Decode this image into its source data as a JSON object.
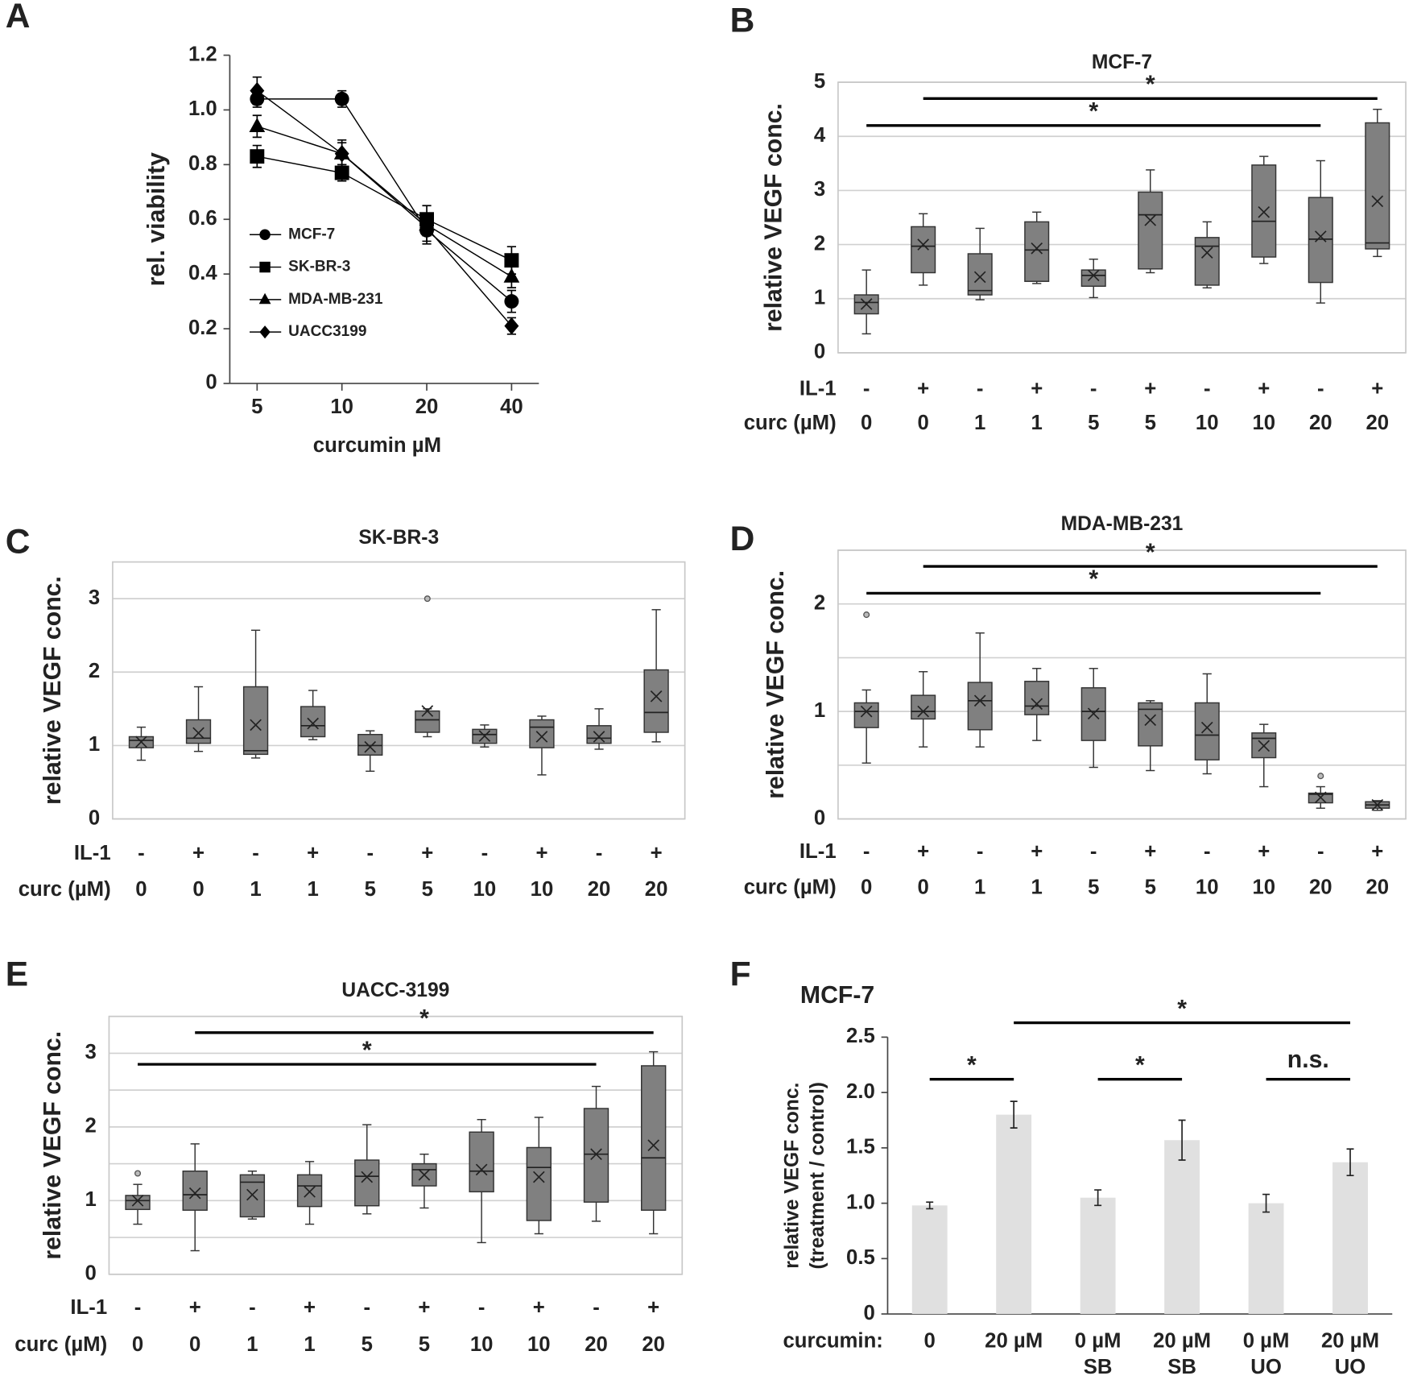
{
  "chart_data": [
    {
      "type": "line",
      "panel": "A",
      "ylabel": "rel. viability",
      "xlabel": "curcumin µM",
      "xscale": "log",
      "x": [
        5,
        10,
        20,
        40
      ],
      "xlim": [
        4,
        50
      ],
      "xticks": [
        5,
        10,
        20,
        40
      ],
      "ylim": [
        0,
        1.2
      ],
      "yticks": [
        0,
        0.2,
        0.4,
        0.6,
        0.8,
        {
          "value": 1,
          "label": "1.0"
        },
        1.2
      ],
      "legend": "left",
      "series": [
        {
          "name": "MCF-7",
          "marker": "circle",
          "color": "#000000",
          "values": [
            1.04,
            1.04,
            0.56,
            0.3
          ],
          "errors": [
            0.03,
            0.03,
            0.05,
            0.04
          ]
        },
        {
          "name": "SK-BR-3",
          "marker": "square",
          "color": "#000000",
          "values": [
            0.83,
            0.77,
            0.6,
            0.45
          ],
          "errors": [
            0.04,
            0.03,
            0.05,
            0.05
          ]
        },
        {
          "name": "MDA-MB-231",
          "marker": "triangle",
          "color": "#000000",
          "values": [
            0.94,
            0.84,
            0.58,
            0.39
          ],
          "errors": [
            0.04,
            0.04,
            0.04,
            0.04
          ]
        },
        {
          "name": "UACC3199",
          "marker": "diamond",
          "color": "#000000",
          "values": [
            1.07,
            0.84,
            0.57,
            0.21
          ],
          "errors": [
            0.05,
            0.05,
            0.05,
            0.03
          ]
        }
      ]
    },
    {
      "type": "box",
      "panel": "B",
      "title": "MCF-7",
      "ylabel": "relative VEGF conc.",
      "color": "#808080",
      "ylim": [
        0,
        5
      ],
      "yticks": [
        0,
        1,
        2,
        3,
        4,
        5
      ],
      "grid": true,
      "row_labels": [
        "IL-1",
        "curc (µM)"
      ],
      "il1": [
        "-",
        "+",
        "-",
        "+",
        "-",
        "+",
        "-",
        "+",
        "-",
        "+"
      ],
      "curc": [
        "0",
        "0",
        "1",
        "1",
        "5",
        "5",
        "10",
        "10",
        "20",
        "20"
      ],
      "boxes": [
        {
          "min": 0.35,
          "q1": 0.72,
          "median": 0.93,
          "q3": 1.07,
          "max": 1.53,
          "mean": 0.9
        },
        {
          "min": 1.25,
          "q1": 1.48,
          "median": 1.97,
          "q3": 2.33,
          "max": 2.57,
          "mean": 2.0
        },
        {
          "min": 0.98,
          "q1": 1.07,
          "median": 1.15,
          "q3": 1.83,
          "max": 2.3,
          "mean": 1.4
        },
        {
          "min": 1.28,
          "q1": 1.32,
          "median": 1.9,
          "q3": 2.42,
          "max": 2.6,
          "mean": 1.93
        },
        {
          "min": 1.02,
          "q1": 1.23,
          "median": 1.43,
          "q3": 1.53,
          "max": 1.73,
          "mean": 1.43
        },
        {
          "min": 1.48,
          "q1": 1.55,
          "median": 2.55,
          "q3": 2.97,
          "max": 3.38,
          "mean": 2.45
        },
        {
          "min": 1.2,
          "q1": 1.25,
          "median": 1.97,
          "q3": 2.13,
          "max": 2.42,
          "mean": 1.85
        },
        {
          "min": 1.65,
          "q1": 1.77,
          "median": 2.43,
          "q3": 3.47,
          "max": 3.63,
          "mean": 2.6
        },
        {
          "min": 0.92,
          "q1": 1.3,
          "median": 2.1,
          "q3": 2.87,
          "max": 3.55,
          "mean": 2.15
        },
        {
          "min": 1.78,
          "q1": 1.92,
          "median": 2.03,
          "q3": 4.25,
          "max": 4.5,
          "mean": 2.8
        }
      ],
      "significance": [
        {
          "groups": [
            0,
            8
          ],
          "y": 4.2,
          "label": "*"
        },
        {
          "groups": [
            1,
            9
          ],
          "y": 4.7,
          "label": "*"
        }
      ]
    },
    {
      "type": "box",
      "panel": "C",
      "title": "SK-BR-3",
      "ylabel": "relative VEGF conc.",
      "color": "#808080",
      "ylim": [
        0,
        3.5
      ],
      "yticks": [
        0,
        1,
        2,
        3
      ],
      "grid": true,
      "row_labels": [
        "IL-1",
        "curc (µM)"
      ],
      "il1": [
        "-",
        "+",
        "-",
        "+",
        "-",
        "+",
        "-",
        "+",
        "-",
        "+"
      ],
      "curc": [
        "0",
        "0",
        "1",
        "1",
        "5",
        "5",
        "10",
        "10",
        "20",
        "20"
      ],
      "boxes": [
        {
          "min": 0.8,
          "q1": 0.97,
          "median": 1.07,
          "q3": 1.12,
          "max": 1.25,
          "mean": 1.05
        },
        {
          "min": 0.92,
          "q1": 1.03,
          "median": 1.1,
          "q3": 1.35,
          "max": 1.8,
          "mean": 1.17
        },
        {
          "min": 0.83,
          "q1": 0.88,
          "median": 0.93,
          "q3": 1.8,
          "max": 2.57,
          "mean": 1.28
        },
        {
          "min": 1.08,
          "q1": 1.12,
          "median": 1.27,
          "q3": 1.53,
          "max": 1.75,
          "mean": 1.3
        },
        {
          "min": 0.65,
          "q1": 0.87,
          "median": 1.0,
          "q3": 1.15,
          "max": 1.2,
          "mean": 0.98
        },
        {
          "min": 1.12,
          "q1": 1.18,
          "median": 1.35,
          "q3": 1.47,
          "max": 1.5,
          "mean": 1.47,
          "outliers": [
            3.0
          ]
        },
        {
          "min": 0.98,
          "q1": 1.03,
          "median": 1.15,
          "q3": 1.22,
          "max": 1.28,
          "mean": 1.13
        },
        {
          "min": 0.6,
          "q1": 0.97,
          "median": 1.25,
          "q3": 1.35,
          "max": 1.4,
          "mean": 1.12
        },
        {
          "min": 0.95,
          "q1": 1.03,
          "median": 1.1,
          "q3": 1.27,
          "max": 1.5,
          "mean": 1.12
        },
        {
          "min": 1.05,
          "q1": 1.18,
          "median": 1.45,
          "q3": 2.03,
          "max": 2.85,
          "mean": 1.67
        }
      ]
    },
    {
      "type": "box",
      "panel": "D",
      "title": "MDA-MB-231",
      "ylabel": "relative VEGF conc.",
      "color": "#808080",
      "ylim": [
        0,
        2.5
      ],
      "yticks": [
        0,
        1,
        2
      ],
      "ygrid": [
        0.5,
        1.5,
        2.5
      ],
      "grid": true,
      "row_labels": [
        "IL-1",
        "curc (µM)"
      ],
      "il1": [
        "-",
        "+",
        "-",
        "+",
        "-",
        "+",
        "-",
        "+",
        "-",
        "+"
      ],
      "curc": [
        "0",
        "0",
        "1",
        "1",
        "5",
        "5",
        "10",
        "10",
        "20",
        "20"
      ],
      "boxes": [
        {
          "min": 0.52,
          "q1": 0.85,
          "median": 1.0,
          "q3": 1.08,
          "max": 1.2,
          "mean": 1.0,
          "outliers": [
            1.9
          ]
        },
        {
          "min": 0.67,
          "q1": 0.93,
          "median": 1.0,
          "q3": 1.15,
          "max": 1.37,
          "mean": 1.0
        },
        {
          "min": 0.67,
          "q1": 0.83,
          "median": 1.1,
          "q3": 1.27,
          "max": 1.73,
          "mean": 1.1
        },
        {
          "min": 0.73,
          "q1": 0.97,
          "median": 1.05,
          "q3": 1.28,
          "max": 1.4,
          "mean": 1.07
        },
        {
          "min": 0.48,
          "q1": 0.73,
          "median": 1.0,
          "q3": 1.22,
          "max": 1.4,
          "mean": 0.98
        },
        {
          "min": 0.45,
          "q1": 0.68,
          "median": 1.02,
          "q3": 1.08,
          "max": 1.1,
          "mean": 0.92
        },
        {
          "min": 0.42,
          "q1": 0.55,
          "median": 0.78,
          "q3": 1.08,
          "max": 1.35,
          "mean": 0.85
        },
        {
          "min": 0.3,
          "q1": 0.57,
          "median": 0.75,
          "q3": 0.8,
          "max": 0.88,
          "mean": 0.68
        },
        {
          "min": 0.1,
          "q1": 0.15,
          "median": 0.23,
          "q3": 0.24,
          "max": 0.3,
          "mean": 0.2,
          "outliers": [
            0.4
          ]
        },
        {
          "min": 0.08,
          "q1": 0.1,
          "median": 0.13,
          "q3": 0.16,
          "max": 0.17,
          "mean": 0.13
        }
      ],
      "significance": [
        {
          "groups": [
            0,
            8
          ],
          "y": 2.1,
          "label": "*"
        },
        {
          "groups": [
            1,
            9
          ],
          "y": 2.35,
          "label": "*"
        }
      ]
    },
    {
      "type": "box",
      "panel": "E",
      "title": "UACC-3199",
      "ylabel": "relative VEGF conc.",
      "color": "#808080",
      "ylim": [
        0,
        3.5
      ],
      "yticks": [
        0,
        1,
        2,
        3
      ],
      "ygrid": [
        0.5,
        1.5,
        2.5,
        3.5
      ],
      "grid": true,
      "row_labels": [
        "IL-1",
        "curc (µM)"
      ],
      "il1": [
        "-",
        "+",
        "-",
        "+",
        "-",
        "+",
        "-",
        "+",
        "-",
        "+"
      ],
      "curc": [
        "0",
        "0",
        "1",
        "1",
        "5",
        "5",
        "10",
        "10",
        "20",
        "20"
      ],
      "boxes": [
        {
          "min": 0.68,
          "q1": 0.88,
          "median": 1.0,
          "q3": 1.07,
          "max": 1.22,
          "mean": 1.0,
          "outliers": [
            1.37
          ]
        },
        {
          "min": 0.32,
          "q1": 0.87,
          "median": 1.08,
          "q3": 1.4,
          "max": 1.77,
          "mean": 1.1
        },
        {
          "min": 0.75,
          "q1": 0.78,
          "median": 1.25,
          "q3": 1.35,
          "max": 1.4,
          "mean": 1.08
        },
        {
          "min": 0.68,
          "q1": 0.92,
          "median": 1.2,
          "q3": 1.35,
          "max": 1.53,
          "mean": 1.12
        },
        {
          "min": 0.82,
          "q1": 0.93,
          "median": 1.33,
          "q3": 1.55,
          "max": 2.03,
          "mean": 1.32
        },
        {
          "min": 0.9,
          "q1": 1.2,
          "median": 1.42,
          "q3": 1.5,
          "max": 1.63,
          "mean": 1.35
        },
        {
          "min": 0.43,
          "q1": 1.12,
          "median": 1.4,
          "q3": 1.93,
          "max": 2.1,
          "mean": 1.42
        },
        {
          "min": 0.55,
          "q1": 0.73,
          "median": 1.45,
          "q3": 1.72,
          "max": 2.13,
          "mean": 1.32
        },
        {
          "min": 0.72,
          "q1": 0.98,
          "median": 1.63,
          "q3": 2.25,
          "max": 2.55,
          "mean": 1.63
        },
        {
          "min": 0.55,
          "q1": 0.87,
          "median": 1.58,
          "q3": 2.83,
          "max": 3.02,
          "mean": 1.75
        }
      ],
      "significance": [
        {
          "groups": [
            0,
            8
          ],
          "y": 2.85,
          "label": "*"
        },
        {
          "groups": [
            1,
            9
          ],
          "y": 3.28,
          "label": "*"
        }
      ]
    },
    {
      "type": "bar",
      "panel": "F",
      "title": "MCF-7",
      "ylabel": [
        "relative VEGF conc.",
        "(treatment / control)"
      ],
      "xlabel": "curcumin:",
      "color": "#e0e0e0",
      "categories": [
        [
          "0"
        ],
        [
          "20 µM"
        ],
        [
          "0 µM",
          "SB"
        ],
        [
          "20 µM",
          "SB"
        ],
        [
          "0 µM",
          "UO"
        ],
        [
          "20 µM",
          "UO"
        ]
      ],
      "values": [
        0.98,
        1.8,
        1.05,
        1.57,
        1.0,
        1.37
      ],
      "errors": [
        0.03,
        0.12,
        0.07,
        0.18,
        0.08,
        0.12
      ],
      "ylim": [
        0,
        2.5
      ],
      "yticks": [
        0,
        {
          "value": 0.5,
          "label": "0.5"
        },
        {
          "value": 1,
          "label": "1.0"
        },
        {
          "value": 1.5,
          "label": "1.5"
        },
        {
          "value": 2,
          "label": "2.0"
        },
        {
          "value": 2.5,
          "label": "2.5"
        }
      ],
      "significance": [
        {
          "groups": [
            0,
            1
          ],
          "y": 2.12,
          "label": "*"
        },
        {
          "groups": [
            2,
            3
          ],
          "y": 2.12,
          "label": "*"
        },
        {
          "groups": [
            4,
            5
          ],
          "y": 2.12,
          "label": "n.s."
        },
        {
          "groups": [
            1,
            5
          ],
          "y": 2.63,
          "label": "*"
        }
      ]
    }
  ]
}
